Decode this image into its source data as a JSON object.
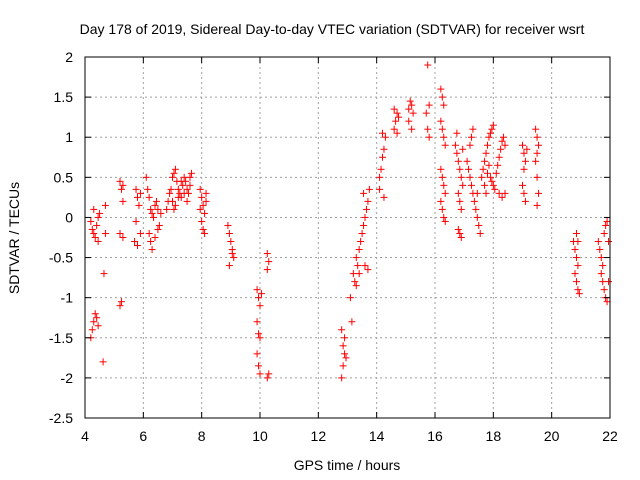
{
  "chart_data": {
    "type": "scatter",
    "title": "Day 178 of 2019, Sidereal Day-to-day VTEC variation (SDTVAR) for receiver wsrt",
    "xlabel": "GPS time / hours",
    "ylabel": "SDTVAR / TECUs",
    "xlim": [
      4,
      22
    ],
    "ylim": [
      -2.5,
      2
    ],
    "xticks": [
      4,
      6,
      8,
      10,
      12,
      14,
      16,
      18,
      20,
      22
    ],
    "yticks": [
      -2.5,
      -2,
      -1.5,
      -1,
      -0.5,
      0,
      0.5,
      1,
      1.5,
      2
    ],
    "xtick_labels": [
      "4",
      "6",
      "8",
      "10",
      "12",
      "14",
      "16",
      "18",
      "20",
      "22"
    ],
    "ytick_labels": [
      "-2.5",
      "-2",
      "-1.5",
      "-1",
      "-0.5",
      "0",
      "0.5",
      "1",
      "1.5",
      "2"
    ],
    "grid": true,
    "marker": "+",
    "color": "#ff0000",
    "series": [
      {
        "name": "SDTVAR",
        "points": [
          [
            4.2,
            -1.5
          ],
          [
            4.25,
            -1.4
          ],
          [
            4.3,
            -1.3
          ],
          [
            4.35,
            -1.2
          ],
          [
            4.4,
            -1.25
          ],
          [
            4.45,
            -1.35
          ],
          [
            4.2,
            -0.05
          ],
          [
            4.25,
            -0.15
          ],
          [
            4.3,
            -0.2
          ],
          [
            4.35,
            -0.25
          ],
          [
            4.4,
            -0.1
          ],
          [
            4.45,
            0.0
          ],
          [
            4.5,
            0.05
          ],
          [
            4.3,
            0.1
          ],
          [
            4.45,
            -0.3
          ],
          [
            4.65,
            -0.7
          ],
          [
            4.62,
            -1.8
          ],
          [
            4.7,
            0.15
          ],
          [
            4.7,
            -0.2
          ],
          [
            5.2,
            0.45
          ],
          [
            5.25,
            0.35
          ],
          [
            5.3,
            0.2
          ],
          [
            5.2,
            -0.2
          ],
          [
            5.3,
            -0.25
          ],
          [
            5.25,
            -1.05
          ],
          [
            5.2,
            -1.1
          ],
          [
            5.3,
            0.4
          ],
          [
            5.75,
            0.35
          ],
          [
            5.8,
            0.25
          ],
          [
            5.85,
            0.15
          ],
          [
            5.7,
            -0.3
          ],
          [
            5.8,
            -0.35
          ],
          [
            5.9,
            -0.2
          ],
          [
            5.75,
            -0.05
          ],
          [
            5.9,
            0.3
          ],
          [
            6.1,
            0.5
          ],
          [
            6.15,
            0.35
          ],
          [
            6.2,
            0.25
          ],
          [
            6.25,
            0.1
          ],
          [
            6.3,
            0.05
          ],
          [
            6.35,
            0.0
          ],
          [
            6.4,
            0.15
          ],
          [
            6.45,
            0.2
          ],
          [
            6.5,
            0.1
          ],
          [
            6.2,
            -0.2
          ],
          [
            6.25,
            -0.3
          ],
          [
            6.3,
            -0.4
          ],
          [
            6.4,
            -0.25
          ],
          [
            6.5,
            -0.15
          ],
          [
            6.55,
            -0.1
          ],
          [
            6.6,
            0.05
          ],
          [
            6.8,
            0.1
          ],
          [
            6.85,
            0.2
          ],
          [
            6.9,
            0.3
          ],
          [
            6.95,
            0.35
          ],
          [
            7.0,
            0.5
          ],
          [
            7.05,
            0.55
          ],
          [
            7.1,
            0.6
          ],
          [
            7.15,
            0.45
          ],
          [
            7.2,
            0.35
          ],
          [
            7.25,
            0.3
          ],
          [
            7.3,
            0.25
          ],
          [
            7.35,
            0.4
          ],
          [
            7.4,
            0.5
          ],
          [
            7.45,
            0.45
          ],
          [
            7.5,
            0.35
          ],
          [
            7.55,
            0.3
          ],
          [
            7.6,
            0.4
          ],
          [
            7.65,
            0.55
          ],
          [
            7.0,
            0.2
          ],
          [
            7.05,
            0.1
          ],
          [
            7.1,
            0.15
          ],
          [
            7.2,
            0.25
          ],
          [
            7.3,
            0.45
          ],
          [
            7.4,
            0.3
          ],
          [
            7.5,
            0.2
          ],
          [
            7.6,
            0.5
          ],
          [
            7.95,
            0.35
          ],
          [
            8.0,
            0.25
          ],
          [
            8.05,
            0.15
          ],
          [
            8.1,
            0.05
          ],
          [
            8.15,
            0.2
          ],
          [
            8.0,
            -0.05
          ],
          [
            8.05,
            -0.15
          ],
          [
            8.1,
            -0.2
          ],
          [
            7.95,
            0.1
          ],
          [
            8.15,
            0.3
          ],
          [
            8.9,
            -0.1
          ],
          [
            8.95,
            -0.2
          ],
          [
            9.0,
            -0.3
          ],
          [
            9.05,
            -0.4
          ],
          [
            9.1,
            -0.5
          ],
          [
            8.95,
            -0.6
          ],
          [
            9.05,
            -0.45
          ],
          [
            9.9,
            -0.9
          ],
          [
            9.95,
            -1.0
          ],
          [
            10.0,
            -1.1
          ],
          [
            9.9,
            -1.3
          ],
          [
            9.95,
            -1.45
          ],
          [
            10.0,
            -1.5
          ],
          [
            9.9,
            -1.7
          ],
          [
            9.95,
            -1.85
          ],
          [
            10.0,
            -1.95
          ],
          [
            10.05,
            -0.95
          ],
          [
            10.25,
            -0.45
          ],
          [
            10.3,
            -0.55
          ],
          [
            10.25,
            -0.65
          ],
          [
            10.3,
            -1.95
          ],
          [
            10.25,
            -2.0
          ],
          [
            12.8,
            -1.4
          ],
          [
            12.85,
            -1.6
          ],
          [
            12.9,
            -1.7
          ],
          [
            12.85,
            -1.85
          ],
          [
            12.8,
            -2.0
          ],
          [
            12.9,
            -1.5
          ],
          [
            12.95,
            -1.75
          ],
          [
            13.1,
            -1.0
          ],
          [
            13.15,
            -1.3
          ],
          [
            13.2,
            -0.7
          ],
          [
            13.25,
            -0.8
          ],
          [
            13.3,
            -0.85
          ],
          [
            13.35,
            -0.6
          ],
          [
            13.4,
            -0.4
          ],
          [
            13.45,
            -0.3
          ],
          [
            13.3,
            -0.5
          ],
          [
            13.4,
            -0.7
          ],
          [
            13.5,
            -0.2
          ],
          [
            13.55,
            -0.1
          ],
          [
            13.6,
            0.0
          ],
          [
            13.65,
            0.1
          ],
          [
            13.7,
            0.2
          ],
          [
            13.75,
            0.35
          ],
          [
            13.6,
            -0.6
          ],
          [
            13.7,
            -0.65
          ],
          [
            13.55,
            0.3
          ],
          [
            14.1,
            0.5
          ],
          [
            14.15,
            0.6
          ],
          [
            14.2,
            0.75
          ],
          [
            14.25,
            0.85
          ],
          [
            14.3,
            1.0
          ],
          [
            14.2,
            1.05
          ],
          [
            14.1,
            0.35
          ],
          [
            14.25,
            0.25
          ],
          [
            14.6,
            1.1
          ],
          [
            14.65,
            1.2
          ],
          [
            14.7,
            1.3
          ],
          [
            14.75,
            1.25
          ],
          [
            14.6,
            1.35
          ],
          [
            14.7,
            1.05
          ],
          [
            15.1,
            1.35
          ],
          [
            15.15,
            1.45
          ],
          [
            15.2,
            1.4
          ],
          [
            15.25,
            1.3
          ],
          [
            15.1,
            1.2
          ],
          [
            15.2,
            1.1
          ],
          [
            15.7,
            1.3
          ],
          [
            15.75,
            1.1
          ],
          [
            15.8,
            1.0
          ],
          [
            15.75,
            1.9
          ],
          [
            15.8,
            1.4
          ],
          [
            16.2,
            1.6
          ],
          [
            16.25,
            1.5
          ],
          [
            16.3,
            1.4
          ],
          [
            16.2,
            1.2
          ],
          [
            16.25,
            1.1
          ],
          [
            16.3,
            1.0
          ],
          [
            16.35,
            0.9
          ],
          [
            16.2,
            0.6
          ],
          [
            16.25,
            0.5
          ],
          [
            16.3,
            0.4
          ],
          [
            16.35,
            0.3
          ],
          [
            16.2,
            0.2
          ],
          [
            16.25,
            0.1
          ],
          [
            16.3,
            0.0
          ],
          [
            16.35,
            -0.05
          ],
          [
            16.7,
            0.9
          ],
          [
            16.75,
            0.8
          ],
          [
            16.8,
            0.7
          ],
          [
            16.85,
            0.6
          ],
          [
            16.9,
            0.5
          ],
          [
            16.95,
            0.4
          ],
          [
            16.8,
            0.3
          ],
          [
            16.85,
            0.2
          ],
          [
            16.9,
            0.1
          ],
          [
            16.8,
            -0.15
          ],
          [
            16.85,
            -0.2
          ],
          [
            16.9,
            -0.25
          ],
          [
            16.75,
            1.05
          ],
          [
            16.95,
            0.85
          ],
          [
            17.1,
            0.7
          ],
          [
            17.15,
            0.6
          ],
          [
            17.2,
            0.5
          ],
          [
            17.25,
            0.4
          ],
          [
            17.3,
            0.3
          ],
          [
            17.35,
            0.2
          ],
          [
            17.2,
            0.9
          ],
          [
            17.25,
            1.0
          ],
          [
            17.3,
            1.1
          ],
          [
            17.4,
            0.1
          ],
          [
            17.45,
            0.0
          ],
          [
            17.5,
            -0.1
          ],
          [
            17.55,
            -0.2
          ],
          [
            17.45,
            0.3
          ],
          [
            17.6,
            0.5
          ],
          [
            17.65,
            0.6
          ],
          [
            17.7,
            0.7
          ],
          [
            17.75,
            0.8
          ],
          [
            17.8,
            0.9
          ],
          [
            17.85,
            1.0
          ],
          [
            17.9,
            1.05
          ],
          [
            17.95,
            1.1
          ],
          [
            18.0,
            1.15
          ],
          [
            17.7,
            0.4
          ],
          [
            17.75,
            0.3
          ],
          [
            17.8,
            0.55
          ],
          [
            17.85,
            0.65
          ],
          [
            17.9,
            0.5
          ],
          [
            17.95,
            0.45
          ],
          [
            18.0,
            0.4
          ],
          [
            18.05,
            0.35
          ],
          [
            18.1,
            0.55
          ],
          [
            18.15,
            0.65
          ],
          [
            18.2,
            0.75
          ],
          [
            18.25,
            0.85
          ],
          [
            18.3,
            0.95
          ],
          [
            18.35,
            1.0
          ],
          [
            18.4,
            0.9
          ],
          [
            18.2,
            0.3
          ],
          [
            18.3,
            0.25
          ],
          [
            18.4,
            0.3
          ],
          [
            19.0,
            0.9
          ],
          [
            19.05,
            0.8
          ],
          [
            19.1,
            0.7
          ],
          [
            19.05,
            0.6
          ],
          [
            19.0,
            0.4
          ],
          [
            19.05,
            0.3
          ],
          [
            19.1,
            0.2
          ],
          [
            19.15,
            0.85
          ],
          [
            19.45,
            1.1
          ],
          [
            19.5,
            1.0
          ],
          [
            19.55,
            0.9
          ],
          [
            19.5,
            0.8
          ],
          [
            19.45,
            0.7
          ],
          [
            19.5,
            0.5
          ],
          [
            19.55,
            0.3
          ],
          [
            19.5,
            0.15
          ],
          [
            20.75,
            -0.3
          ],
          [
            20.8,
            -0.4
          ],
          [
            20.85,
            -0.5
          ],
          [
            20.9,
            -0.6
          ],
          [
            20.85,
            -0.2
          ],
          [
            20.8,
            -0.7
          ],
          [
            20.85,
            -0.8
          ],
          [
            20.9,
            -0.9
          ],
          [
            20.95,
            -0.95
          ],
          [
            20.9,
            -0.3
          ],
          [
            21.6,
            -0.3
          ],
          [
            21.65,
            -0.4
          ],
          [
            21.7,
            -0.5
          ],
          [
            21.75,
            -0.6
          ],
          [
            21.7,
            -0.7
          ],
          [
            21.75,
            -0.8
          ],
          [
            21.8,
            -0.9
          ],
          [
            21.85,
            -1.0
          ],
          [
            21.9,
            -1.05
          ],
          [
            21.8,
            -0.2
          ],
          [
            21.85,
            -0.1
          ],
          [
            21.9,
            -0.05
          ],
          [
            21.95,
            -0.3
          ],
          [
            21.95,
            -0.8
          ]
        ]
      }
    ]
  }
}
